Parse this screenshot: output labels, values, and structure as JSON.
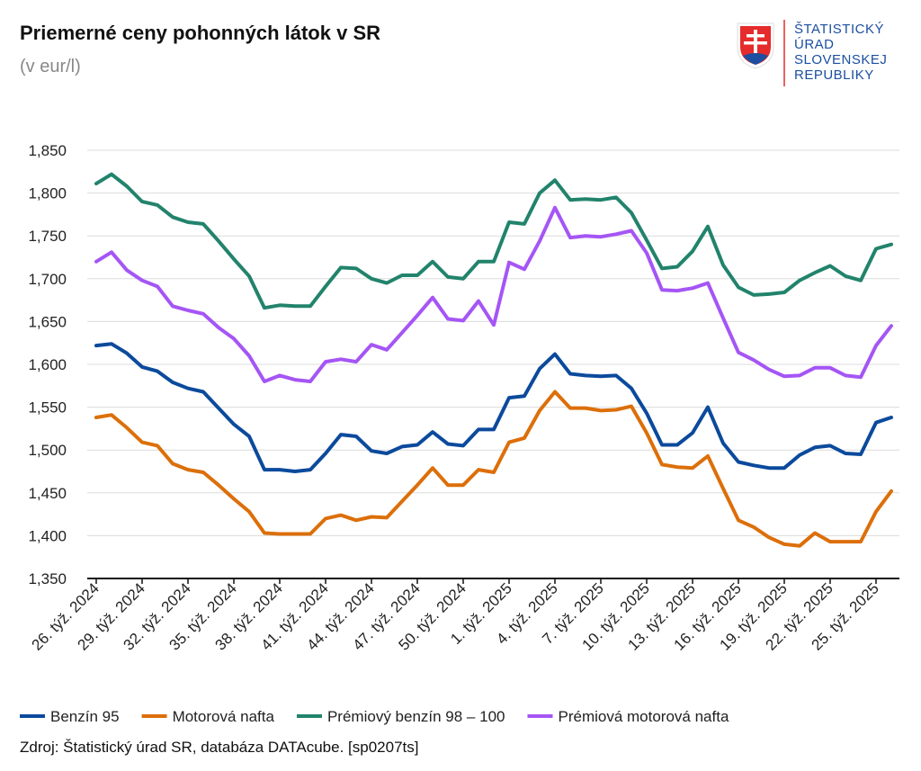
{
  "chart_data": {
    "type": "line",
    "title": "Priemerné ceny pohonných látok v SR",
    "subtitle": "(v eur/l)",
    "source": "Zdroj: Štatistický úrad SR, databáza DATAcube. [sp0207ts]",
    "logo_text": [
      "ŠTATISTICKÝ",
      "ÚRAD",
      "SLOVENSKEJ",
      "REPUBLIKY"
    ],
    "categories": [
      "26. týž. 2024",
      null,
      null,
      "29. týž. 2024",
      null,
      null,
      "32. týž. 2024",
      null,
      null,
      "35. týž. 2024",
      null,
      null,
      "38. týž. 2024",
      null,
      null,
      "41. týž. 2024",
      null,
      null,
      "44. týž. 2024",
      null,
      null,
      "47. týž. 2024",
      null,
      null,
      "50. týž. 2024",
      null,
      null,
      "1. týž. 2025",
      null,
      null,
      "4. týž. 2025",
      null,
      null,
      "7. týž. 2025",
      null,
      null,
      "10. týž. 2025",
      null,
      null,
      "13. týž. 2025",
      null,
      null,
      "16. týž. 2025",
      null,
      null,
      "19. týž. 2025",
      null,
      null,
      "22. týž. 2025",
      null,
      null,
      "25. týž. 2025",
      null
    ],
    "ylim": [
      1.35,
      1.85
    ],
    "yticks": [
      {
        "value": 1.35,
        "label": "1,350"
      },
      {
        "value": 1.4,
        "label": "1,400"
      },
      {
        "value": 1.45,
        "label": "1,450"
      },
      {
        "value": 1.5,
        "label": "1,500"
      },
      {
        "value": 1.55,
        "label": "1,550"
      },
      {
        "value": 1.6,
        "label": "1,600"
      },
      {
        "value": 1.65,
        "label": "1,650"
      },
      {
        "value": 1.7,
        "label": "1,700"
      },
      {
        "value": 1.75,
        "label": "1,750"
      },
      {
        "value": 1.8,
        "label": "1,800"
      },
      {
        "value": 1.85,
        "label": "1,850"
      }
    ],
    "grid": true,
    "legend": "bottom",
    "series": [
      {
        "name": "Benzín 95",
        "color": "#0b4a9c",
        "values": [
          1.622,
          1.624,
          1.613,
          1.597,
          1.592,
          1.579,
          1.572,
          1.568,
          1.549,
          1.53,
          1.516,
          1.477,
          1.477,
          1.475,
          1.477,
          1.496,
          1.518,
          1.516,
          1.499,
          1.496,
          1.504,
          1.506,
          1.521,
          1.507,
          1.505,
          1.524,
          1.524,
          1.561,
          1.563,
          1.595,
          1.612,
          1.589,
          1.587,
          1.586,
          1.587,
          1.572,
          1.543,
          1.506,
          1.506,
          1.52,
          1.55,
          1.508,
          1.486,
          1.482,
          1.479,
          1.479,
          1.494,
          1.503,
          1.505,
          1.496,
          1.495,
          1.532,
          1.538
        ]
      },
      {
        "name": "Motorová nafta",
        "color": "#dc6f0a",
        "values": [
          1.538,
          1.541,
          1.526,
          1.509,
          1.505,
          1.484,
          1.477,
          1.474,
          1.459,
          1.443,
          1.428,
          1.403,
          1.402,
          1.402,
          1.402,
          1.42,
          1.424,
          1.418,
          1.422,
          1.421,
          1.44,
          1.459,
          1.479,
          1.459,
          1.459,
          1.477,
          1.474,
          1.509,
          1.514,
          1.546,
          1.568,
          1.549,
          1.549,
          1.546,
          1.547,
          1.551,
          1.52,
          1.483,
          1.48,
          1.479,
          1.493,
          1.455,
          1.418,
          1.41,
          1.398,
          1.39,
          1.388,
          1.403,
          1.393,
          1.393,
          1.393,
          1.428,
          1.452
        ]
      },
      {
        "name": "Prémiový benzín 98 – 100",
        "color": "#22836c",
        "values": [
          1.811,
          1.822,
          1.808,
          1.79,
          1.786,
          1.772,
          1.766,
          1.764,
          1.744,
          1.723,
          1.703,
          1.666,
          1.669,
          1.668,
          1.668,
          1.691,
          1.713,
          1.712,
          1.7,
          1.695,
          1.704,
          1.704,
          1.72,
          1.702,
          1.7,
          1.72,
          1.72,
          1.766,
          1.764,
          1.8,
          1.815,
          1.792,
          1.793,
          1.792,
          1.795,
          1.777,
          1.745,
          1.712,
          1.714,
          1.732,
          1.761,
          1.716,
          1.69,
          1.681,
          1.682,
          1.684,
          1.698,
          1.707,
          1.715,
          1.703,
          1.698,
          1.735,
          1.74
        ]
      },
      {
        "name": "Prémiová motorová nafta",
        "color": "#a555f5",
        "values": [
          1.72,
          1.731,
          1.71,
          1.698,
          1.691,
          1.668,
          1.663,
          1.659,
          1.643,
          1.63,
          1.61,
          1.58,
          1.587,
          1.582,
          1.58,
          1.603,
          1.606,
          1.603,
          1.623,
          1.617,
          1.637,
          1.657,
          1.678,
          1.653,
          1.651,
          1.674,
          1.646,
          1.719,
          1.711,
          1.744,
          1.783,
          1.748,
          1.75,
          1.749,
          1.752,
          1.756,
          1.73,
          1.687,
          1.686,
          1.689,
          1.695,
          1.654,
          1.614,
          1.605,
          1.594,
          1.586,
          1.587,
          1.596,
          1.596,
          1.587,
          1.585,
          1.622,
          1.645
        ]
      }
    ]
  }
}
